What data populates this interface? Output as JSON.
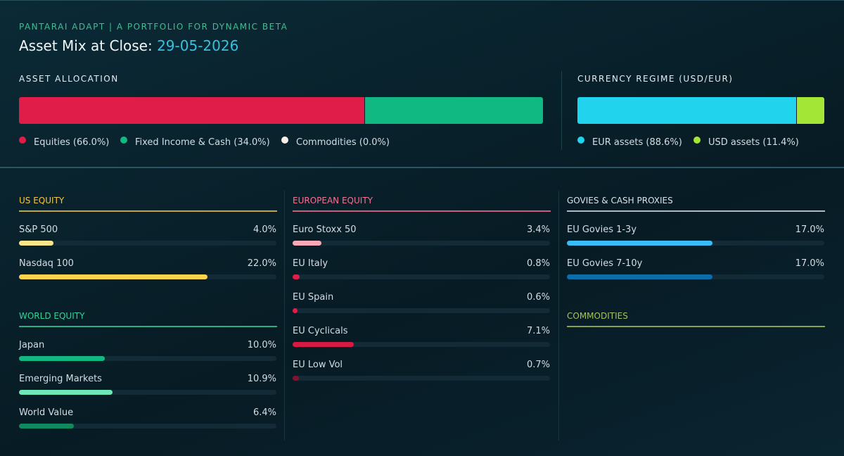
{
  "header": {
    "subtitle": "PANTARAI ADAPT | A PORTFOLIO FOR DYNAMIC BETA",
    "title": "Asset Mix at Close:",
    "date": "29-05-2026"
  },
  "allocation": {
    "title": "ASSET ALLOCATION",
    "segments": [
      {
        "value": 66.0,
        "label": "Equities (66.0%)",
        "color": "#e01c48"
      },
      {
        "value": 34.0,
        "label": "Fixed Income & Cash (34.0%)",
        "color": "#10b981"
      },
      {
        "value": 0.0,
        "label": "Commodities (0.0%)",
        "color": "#f5efe6"
      }
    ]
  },
  "currency": {
    "title": "CURRENCY REGIME (USD/EUR)",
    "segments": [
      {
        "value": 88.6,
        "label": "EUR assets (88.6%)",
        "color": "#22d3ee"
      },
      {
        "value": 11.4,
        "label": "USD assets (11.4%)",
        "color": "#a3e635"
      }
    ]
  },
  "columns": [
    {
      "groups": [
        {
          "title": "US EQUITY",
          "color": "#f5c542",
          "items": [
            {
              "name": "S&P 500",
              "value": 4.0,
              "label": "4.0%",
              "color": "#fde68a"
            },
            {
              "name": "Nasdaq 100",
              "value": 22.0,
              "label": "22.0%",
              "color": "#fcd34d"
            }
          ]
        },
        {
          "title": "WORLD EQUITY",
          "color": "#34d399",
          "items": [
            {
              "name": "Japan",
              "value": 10.0,
              "label": "10.0%",
              "color": "#10b981"
            },
            {
              "name": "Emerging Markets",
              "value": 10.9,
              "label": "10.9%",
              "color": "#6ee7b7"
            },
            {
              "name": "World Value",
              "value": 6.4,
              "label": "6.4%",
              "color": "#0f8a5f"
            }
          ]
        }
      ]
    },
    {
      "groups": [
        {
          "title": "EUROPEAN EQUITY",
          "color": "#f87190",
          "items": [
            {
              "name": "Euro Stoxx 50",
              "value": 3.4,
              "label": "3.4%",
              "color": "#f9a8b8"
            },
            {
              "name": "EU Italy",
              "value": 0.8,
              "label": "0.8%",
              "color": "#e11d48"
            },
            {
              "name": "EU Spain",
              "value": 0.6,
              "label": "0.6%",
              "color": "#e11d48"
            },
            {
              "name": "EU Cyclicals",
              "value": 7.1,
              "label": "7.1%",
              "color": "#d61a44"
            },
            {
              "name": "EU Low Vol",
              "value": 0.7,
              "label": "0.7%",
              "color": "#7f1530"
            }
          ]
        }
      ]
    },
    {
      "groups": [
        {
          "title": "GOVIES & CASH PROXIES",
          "color": "#d9e2ea",
          "items": [
            {
              "name": "EU Govies 1-3y",
              "value": 17.0,
              "label": "17.0%",
              "color": "#38bdf8"
            },
            {
              "name": "EU Govies 7-10y",
              "value": 17.0,
              "label": "17.0%",
              "color": "#0b6ea8"
            }
          ]
        },
        {
          "title": "COMMODITIES",
          "color": "#a6c35c",
          "items": []
        }
      ]
    }
  ]
}
